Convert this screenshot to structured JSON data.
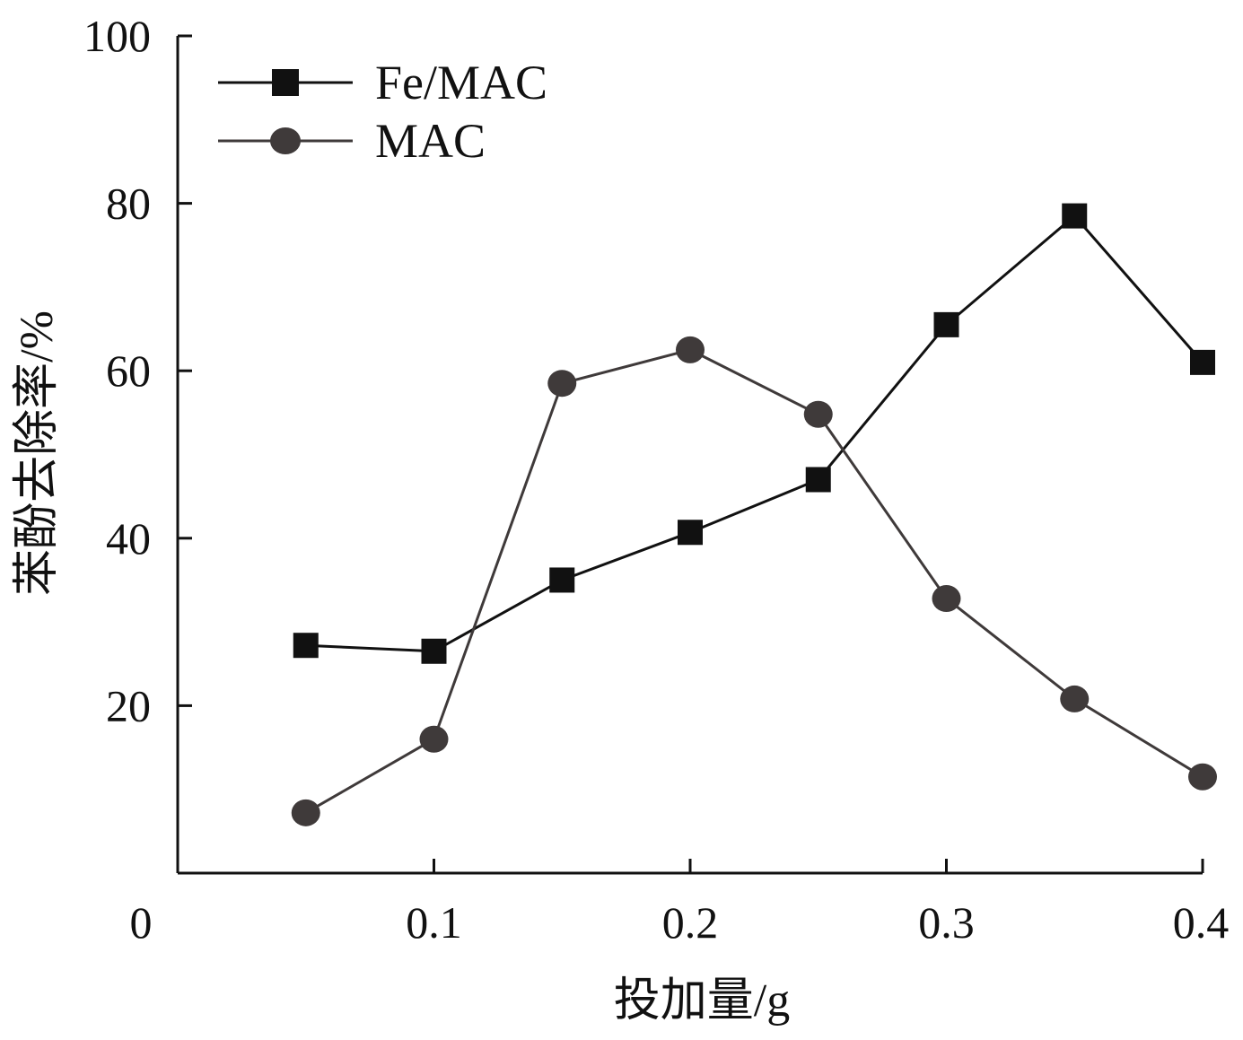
{
  "chart_data": {
    "type": "line",
    "title": "",
    "xlabel": "投加量/g",
    "ylabel": "苯酚去除率/%",
    "xlim": [
      0,
      0.4
    ],
    "ylim": [
      0,
      100
    ],
    "x_ticks": [
      "0",
      "0.1",
      "0.2",
      "0.3",
      "0.4"
    ],
    "y_ticks": [
      "20",
      "40",
      "60",
      "80",
      "100"
    ],
    "grid": false,
    "legend_position": "top-left",
    "x": [
      0.05,
      0.1,
      0.15,
      0.2,
      0.25,
      0.3,
      0.35,
      0.4
    ],
    "series": [
      {
        "name": "Fe/MAC",
        "marker": "square",
        "color": "#111111",
        "values": [
          27.2,
          26.5,
          35.0,
          40.7,
          47.0,
          65.5,
          78.5,
          61.0
        ]
      },
      {
        "name": "MAC",
        "marker": "circle",
        "color": "#3f3a3a",
        "values": [
          7.2,
          16.0,
          58.5,
          62.5,
          54.8,
          32.8,
          20.8,
          11.5
        ]
      }
    ]
  }
}
